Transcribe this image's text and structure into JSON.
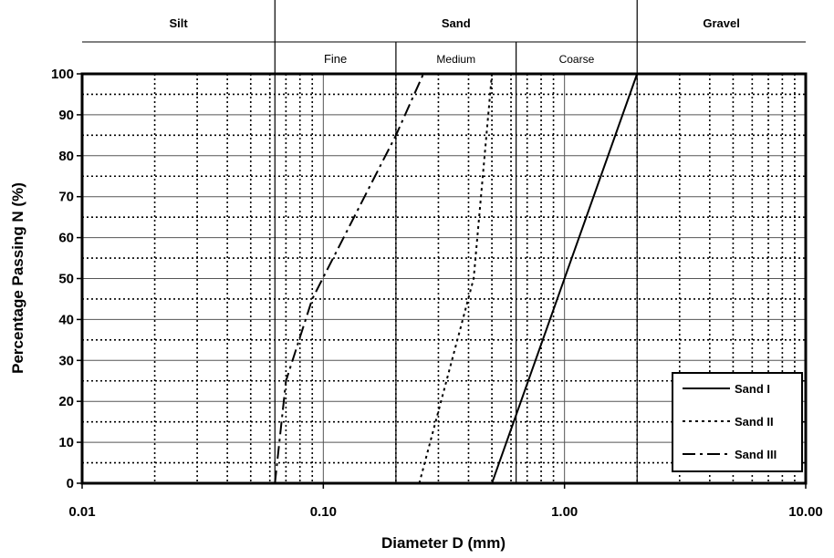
{
  "chart_data": {
    "type": "line",
    "title": "",
    "xlabel": "Diameter D (mm)",
    "ylabel": "Percentage Passing  N (%)",
    "x_scale": "log",
    "xlim": [
      0.01,
      10
    ],
    "ylim": [
      0,
      100
    ],
    "x_ticks": [
      0.01,
      0.1,
      1,
      10
    ],
    "x_tick_labels": [
      "0.01",
      "0.10",
      "1.00",
      "10.00"
    ],
    "y_ticks": [
      0,
      10,
      20,
      30,
      40,
      50,
      60,
      70,
      80,
      90,
      100
    ],
    "y_tick_labels": [
      "0",
      "10",
      "20",
      "30",
      "40",
      "50",
      "60",
      "70",
      "80",
      "90",
      "100"
    ],
    "grid": true,
    "legend_position": "bottom-right",
    "soil_classes": {
      "main": [
        {
          "label": "Silt",
          "from": 0.01,
          "to": 0.063
        },
        {
          "label": "Sand",
          "from": 0.063,
          "to": 2.0
        },
        {
          "label": "Gravel",
          "from": 2.0,
          "to": 10
        }
      ],
      "sub": [
        {
          "label": "Fine",
          "from": 0.063,
          "to": 0.2
        },
        {
          "label": "Medium",
          "from": 0.2,
          "to": 0.63
        },
        {
          "label": "Coarse",
          "from": 0.63,
          "to": 2.0
        }
      ]
    },
    "series": [
      {
        "name": "Sand I",
        "style": "solid",
        "x": [
          0.5,
          2.0
        ],
        "y": [
          0,
          100
        ]
      },
      {
        "name": "Sand II",
        "style": "dotted",
        "x": [
          0.25,
          0.42,
          0.5
        ],
        "y": [
          0,
          50,
          100
        ]
      },
      {
        "name": "Sand III",
        "style": "dashdot",
        "x": [
          0.063,
          0.07,
          0.09,
          0.2,
          0.26
        ],
        "y": [
          0,
          25,
          45,
          85,
          100
        ]
      }
    ]
  }
}
